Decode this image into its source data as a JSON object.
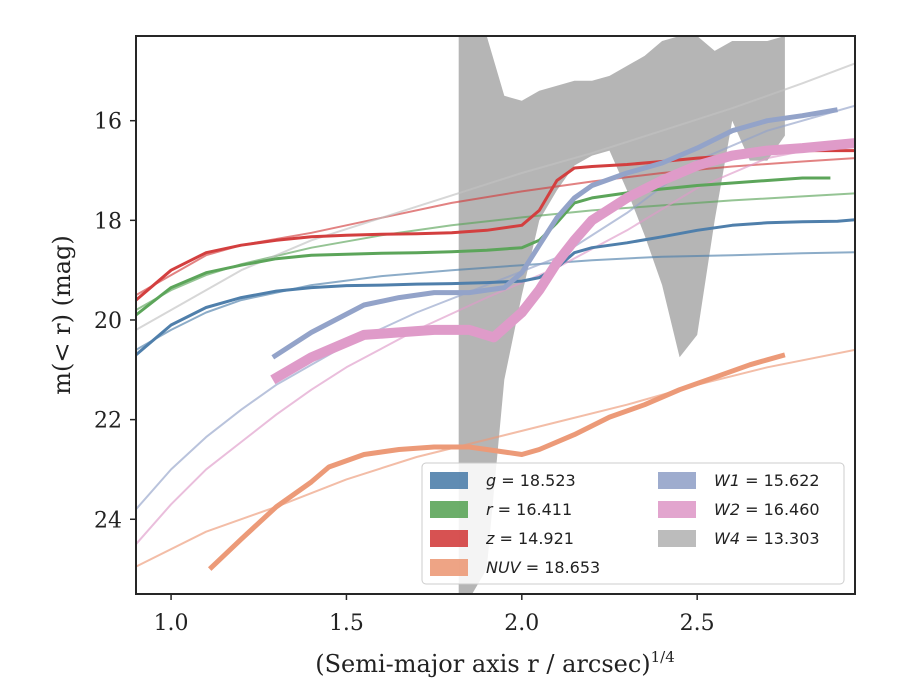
{
  "chart_data": {
    "type": "line",
    "xlabel": "(Semi-major axis r / arcsec)",
    "xlabel_sup": "1/4",
    "ylabel": "m(< r) (mag)",
    "xlim": [
      0.9,
      2.95
    ],
    "ylim": [
      25.5,
      14.3
    ],
    "y_inverted": true,
    "x_ticks": [
      1.0,
      1.5,
      2.0,
      2.5
    ],
    "x_tick_labels": [
      "1.0",
      "1.5",
      "2.0",
      "2.5"
    ],
    "y_ticks": [
      16,
      18,
      20,
      22,
      24
    ],
    "y_tick_labels": [
      "16",
      "18",
      "20",
      "22",
      "24"
    ],
    "legend_position": "lower-right",
    "legend": [
      {
        "band": "g",
        "value": "18.523",
        "color": "#4f7fab"
      },
      {
        "band": "r",
        "value": "16.411",
        "color": "#5ca55a"
      },
      {
        "band": "z",
        "value": "14.921",
        "color": "#d33f3f"
      },
      {
        "band": "NUV",
        "value": "18.653",
        "color": "#ec9a78"
      },
      {
        "band": "W1",
        "value": "15.622",
        "color": "#93a3c9"
      },
      {
        "band": "W2",
        "value": "16.460",
        "color": "#df9bc9"
      },
      {
        "band": "W4",
        "value": "13.303",
        "color": "#b5b5b5"
      }
    ],
    "series": [
      {
        "band": "g",
        "kind": "data",
        "color": "#4f7fab",
        "width": 3,
        "x": [
          0.9,
          1.0,
          1.1,
          1.2,
          1.3,
          1.4,
          1.5,
          1.6,
          1.7,
          1.8,
          1.9,
          2.0,
          2.05,
          2.1,
          2.15,
          2.2,
          2.3,
          2.4,
          2.5,
          2.6,
          2.7,
          2.8,
          2.9,
          2.95
        ],
        "y": [
          20.7,
          20.1,
          19.75,
          19.55,
          19.42,
          19.35,
          19.31,
          19.3,
          19.28,
          19.27,
          19.25,
          19.22,
          19.15,
          18.95,
          18.65,
          18.55,
          18.45,
          18.33,
          18.2,
          18.1,
          18.05,
          18.03,
          18.02,
          17.99
        ]
      },
      {
        "band": "g",
        "kind": "model",
        "color": "#4f7fab",
        "width": 2,
        "x": [
          0.9,
          1.0,
          1.1,
          1.2,
          1.3,
          1.4,
          1.6,
          1.8,
          2.0,
          2.2,
          2.4,
          2.6,
          2.8,
          2.95
        ],
        "y": [
          20.6,
          20.2,
          19.85,
          19.6,
          19.45,
          19.3,
          19.12,
          19.0,
          18.9,
          18.8,
          18.73,
          18.7,
          18.66,
          18.64
        ]
      },
      {
        "band": "r",
        "kind": "data",
        "color": "#5ca55a",
        "width": 3,
        "x": [
          0.9,
          1.0,
          1.1,
          1.2,
          1.3,
          1.4,
          1.5,
          1.6,
          1.7,
          1.8,
          1.9,
          2.0,
          2.05,
          2.1,
          2.15,
          2.2,
          2.3,
          2.4,
          2.5,
          2.6,
          2.7,
          2.8,
          2.88
        ],
        "y": [
          19.9,
          19.35,
          19.05,
          18.9,
          18.77,
          18.7,
          18.68,
          18.66,
          18.65,
          18.63,
          18.6,
          18.55,
          18.4,
          18.05,
          17.65,
          17.55,
          17.45,
          17.37,
          17.3,
          17.25,
          17.2,
          17.15,
          17.15
        ]
      },
      {
        "band": "r",
        "kind": "model",
        "color": "#5ca55a",
        "width": 2,
        "x": [
          0.9,
          1.0,
          1.1,
          1.2,
          1.4,
          1.6,
          1.8,
          2.0,
          2.2,
          2.4,
          2.6,
          2.8,
          2.95
        ],
        "y": [
          19.8,
          19.4,
          19.1,
          18.88,
          18.55,
          18.3,
          18.1,
          17.94,
          17.8,
          17.7,
          17.6,
          17.52,
          17.46
        ]
      },
      {
        "band": "z",
        "kind": "data",
        "color": "#d33f3f",
        "width": 3,
        "x": [
          0.9,
          1.0,
          1.1,
          1.2,
          1.3,
          1.4,
          1.5,
          1.6,
          1.7,
          1.8,
          1.9,
          2.0,
          2.05,
          2.1,
          2.15,
          2.2,
          2.3,
          2.4,
          2.5,
          2.6,
          2.7,
          2.8,
          2.95
        ],
        "y": [
          19.6,
          19.0,
          18.65,
          18.5,
          18.4,
          18.33,
          18.3,
          18.28,
          18.27,
          18.25,
          18.2,
          18.1,
          17.8,
          17.2,
          16.95,
          16.92,
          16.88,
          16.82,
          16.75,
          16.7,
          16.65,
          16.6,
          16.6
        ]
      },
      {
        "band": "z",
        "kind": "model",
        "color": "#d33f3f",
        "width": 2,
        "x": [
          0.9,
          1.0,
          1.1,
          1.2,
          1.4,
          1.6,
          1.8,
          2.0,
          2.2,
          2.4,
          2.6,
          2.8,
          2.95
        ],
        "y": [
          19.5,
          19.1,
          18.7,
          18.5,
          18.25,
          17.95,
          17.65,
          17.42,
          17.22,
          17.05,
          16.92,
          16.82,
          16.75
        ]
      },
      {
        "band": "NUV",
        "kind": "data",
        "color": "#ec9a78",
        "width": 5,
        "x": [
          1.11,
          1.2,
          1.3,
          1.4,
          1.45,
          1.55,
          1.65,
          1.75,
          1.85,
          1.95,
          2.0,
          2.05,
          2.15,
          2.25,
          2.35,
          2.45,
          2.55,
          2.65,
          2.7,
          2.75
        ],
        "y": [
          25.0,
          24.4,
          23.75,
          23.25,
          22.95,
          22.7,
          22.6,
          22.55,
          22.55,
          22.65,
          22.7,
          22.6,
          22.3,
          21.95,
          21.7,
          21.4,
          21.15,
          20.9,
          20.8,
          20.7
        ]
      },
      {
        "band": "NUV",
        "kind": "model",
        "color": "#ec9a78",
        "width": 2,
        "x": [
          0.9,
          1.1,
          1.3,
          1.5,
          1.7,
          1.9,
          2.1,
          2.3,
          2.5,
          2.7,
          2.95
        ],
        "y": [
          24.95,
          24.25,
          23.75,
          23.2,
          22.75,
          22.4,
          22.05,
          21.7,
          21.3,
          20.95,
          20.6
        ]
      },
      {
        "band": "W1",
        "kind": "data",
        "color": "#93a3c9",
        "width": 5,
        "x": [
          1.29,
          1.4,
          1.55,
          1.65,
          1.75,
          1.85,
          1.95,
          2.0,
          2.05,
          2.1,
          2.15,
          2.2,
          2.3,
          2.4,
          2.5,
          2.6,
          2.7,
          2.8,
          2.9
        ],
        "y": [
          20.75,
          20.25,
          19.7,
          19.55,
          19.45,
          19.45,
          19.35,
          19.05,
          18.5,
          17.95,
          17.55,
          17.3,
          17.05,
          16.85,
          16.55,
          16.2,
          16.0,
          15.9,
          15.78
        ]
      },
      {
        "band": "W1",
        "kind": "model",
        "color": "#93a3c9",
        "width": 2,
        "x": [
          0.9,
          1.0,
          1.1,
          1.2,
          1.3,
          1.4,
          1.5,
          1.7,
          1.9,
          2.1,
          2.3,
          2.5,
          2.7,
          2.95
        ],
        "y": [
          23.8,
          23.0,
          22.35,
          21.8,
          21.3,
          20.9,
          20.5,
          19.85,
          19.3,
          18.75,
          17.85,
          16.8,
          16.2,
          15.7
        ]
      },
      {
        "band": "W2",
        "kind": "data",
        "color": "#df9bc9",
        "width": 10,
        "x": [
          1.29,
          1.4,
          1.55,
          1.65,
          1.75,
          1.85,
          1.92,
          2.0,
          2.05,
          2.1,
          2.15,
          2.2,
          2.3,
          2.4,
          2.5,
          2.6,
          2.7,
          2.8,
          2.95
        ],
        "y": [
          21.2,
          20.75,
          20.3,
          20.25,
          20.2,
          20.2,
          20.35,
          19.85,
          19.4,
          18.85,
          18.4,
          18.0,
          17.55,
          17.2,
          16.9,
          16.7,
          16.6,
          16.55,
          16.45
        ]
      },
      {
        "band": "W2",
        "kind": "model",
        "color": "#df9bc9",
        "width": 2,
        "x": [
          0.9,
          1.0,
          1.1,
          1.2,
          1.3,
          1.4,
          1.5,
          1.7,
          1.9,
          2.1,
          2.3,
          2.5,
          2.7,
          2.95
        ],
        "y": [
          24.5,
          23.7,
          23.0,
          22.45,
          21.9,
          21.4,
          20.95,
          20.2,
          19.55,
          18.95,
          18.2,
          17.35,
          16.75,
          16.4
        ]
      },
      {
        "band": "W4",
        "kind": "model",
        "color": "#c2c2c2",
        "width": 2,
        "x": [
          0.9,
          1.0,
          1.2,
          1.4,
          1.6,
          1.8,
          2.0,
          2.2,
          2.4,
          2.6,
          2.8,
          2.95
        ],
        "y": [
          20.2,
          19.8,
          19.0,
          18.4,
          17.95,
          17.5,
          17.05,
          16.65,
          16.2,
          15.75,
          15.25,
          14.85
        ]
      }
    ],
    "bands": [
      {
        "band": "W4",
        "color": "#b5b5b5",
        "opacity": 1.0,
        "x": [
          1.82,
          1.85,
          1.9,
          1.95,
          2.0,
          2.05,
          2.1,
          2.15,
          2.2,
          2.25,
          2.3,
          2.35,
          2.4,
          2.45,
          2.5,
          2.55,
          2.6,
          2.65,
          2.7,
          2.75
        ],
        "y_low": [
          25.6,
          25.6,
          25.0,
          21.2,
          19.5,
          18.0,
          17.4,
          16.9,
          16.7,
          16.6,
          17.4,
          18.3,
          19.3,
          20.75,
          20.3,
          18.0,
          16.0,
          16.8,
          16.8,
          16.3
        ],
        "y_high": [
          14.3,
          14.3,
          14.3,
          15.5,
          15.6,
          15.4,
          15.3,
          15.2,
          15.2,
          15.1,
          14.9,
          14.7,
          14.4,
          14.3,
          14.3,
          14.6,
          14.4,
          14.4,
          14.4,
          14.3
        ]
      }
    ]
  }
}
